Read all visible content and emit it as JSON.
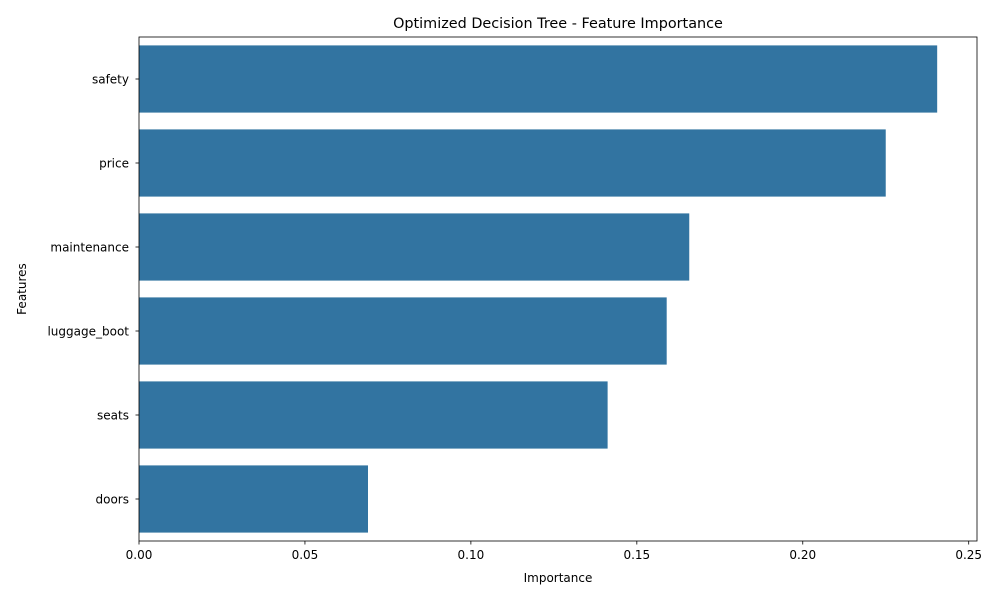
{
  "chart_data": {
    "type": "bar",
    "orientation": "horizontal",
    "title": "Optimized Decision Tree - Feature Importance",
    "xlabel": "Importance",
    "ylabel": "Features",
    "categories": [
      "safety",
      "price",
      "maintenance",
      "luggage_boot",
      "seats",
      "doors"
    ],
    "values": [
      0.2405,
      0.225,
      0.1658,
      0.159,
      0.1412,
      0.069
    ],
    "xlim": [
      0,
      0.2525
    ],
    "xticks": [
      0.0,
      0.05,
      0.1,
      0.15,
      0.2,
      0.25
    ],
    "xtick_labels": [
      "0.00",
      "0.05",
      "0.10",
      "0.15",
      "0.20",
      "0.25"
    ],
    "bar_color": "#3274a1",
    "grid": false,
    "legend": "none"
  }
}
